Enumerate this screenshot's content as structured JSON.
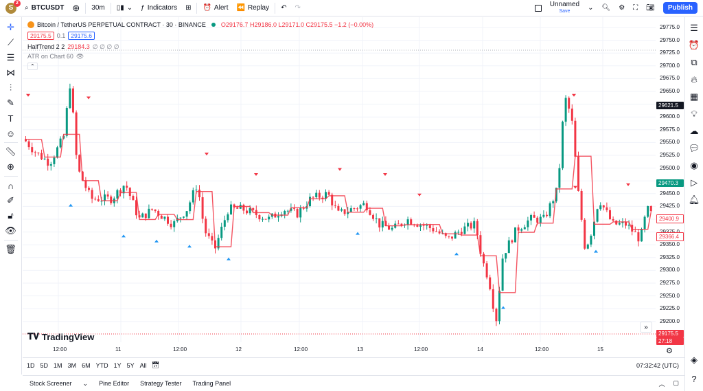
{
  "topbar": {
    "avatar_letter": "S",
    "avatar_badge": "2",
    "symbol": "BTCUSDT",
    "interval": "30m",
    "indicators_label": "Indicators",
    "alert_label": "Alert",
    "replay_label": "Replay",
    "layout_name": "Unnamed",
    "save_label": "Save",
    "publish_label": "Publish"
  },
  "legend": {
    "title": "Bitcoin / TetherUS PERPETUAL CONTRACT · 30 · BINANCE",
    "ohlc": "O29176.7 H29186.0 L29171.0 C29175.5 −1.2 (−0.00%)",
    "sell_price": "29175.5",
    "spread": "0.1",
    "buy_price": "29175.6",
    "indicator1_name": "HalfTrend 2 2",
    "indicator1_value": "29184.3",
    "indicator1_rest": "∅ ∅ ∅ ∅",
    "indicator2_name": "ATR on Chart 60"
  },
  "logo_text": "TradingView",
  "price_axis": {
    "ticks": [
      "29775.0",
      "29750.0",
      "29725.0",
      "29700.0",
      "29675.0",
      "29650.0",
      "29600.0",
      "29575.0",
      "29550.0",
      "29525.0",
      "29500.0",
      "29450.0",
      "29425.0",
      "29375.0",
      "29350.0",
      "29325.0",
      "29300.0",
      "29275.0",
      "29250.0",
      "29225.0",
      "29200.0"
    ],
    "label_high": "29621.5",
    "label_green": "29470.3",
    "label_red1": "29400.9",
    "label_red2": "29366.4",
    "label_last": "29175.5",
    "label_countdown": "27:18"
  },
  "time_axis": [
    "12:00",
    "11",
    "12:00",
    "12",
    "12:00",
    "13",
    "12:00",
    "14",
    "12:00",
    "15"
  ],
  "ranges": [
    "1D",
    "5D",
    "1M",
    "3M",
    "6M",
    "YTD",
    "1Y",
    "5Y",
    "All"
  ],
  "clock": "07:32:42 (UTC)",
  "bottom_tabs": [
    "Stock Screener",
    "Pine Editor",
    "Strategy Tester",
    "Trading Panel"
  ],
  "colors": {
    "up": "#089981",
    "down": "#f23645",
    "halftrend_up": "#2196f3",
    "halftrend_down": "#f23645",
    "accent": "#2962ff"
  },
  "chart_data": {
    "type": "candlestick",
    "symbol": "BTCUSDT",
    "interval": "30m",
    "ylim": [
      29180,
      29790
    ],
    "last_price": 29175.5
  }
}
